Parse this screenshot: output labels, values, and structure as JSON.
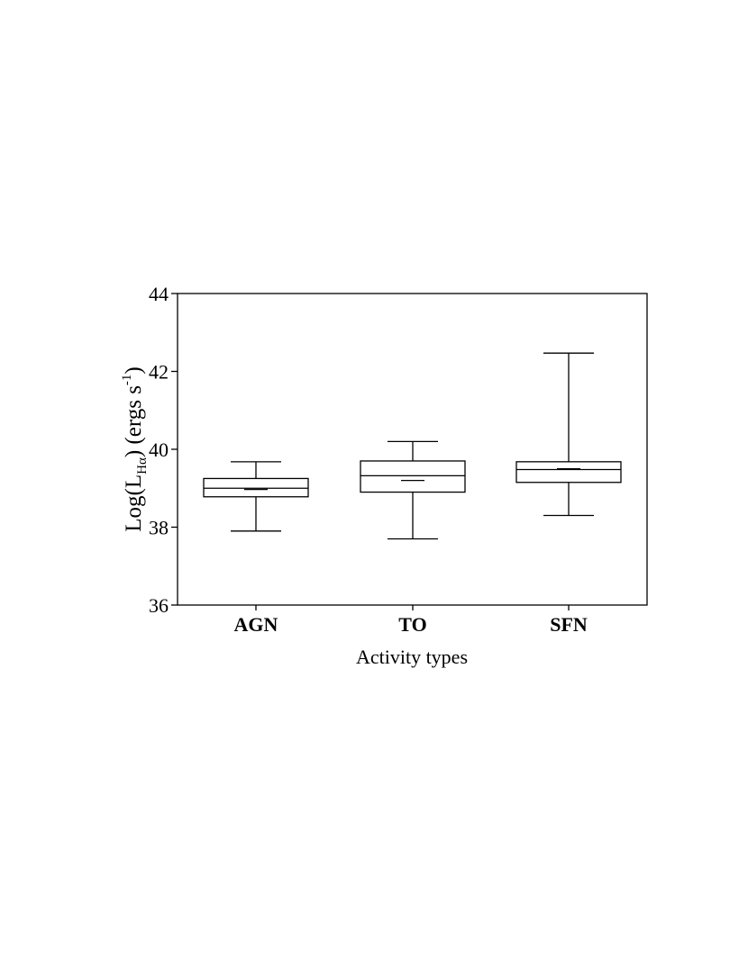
{
  "chart_data": {
    "type": "box",
    "xlabel": "Activity types",
    "ylabel": {
      "prefix": "Log(L",
      "subscript": "Hα",
      "middle": ") (ergs s",
      "superscript": "-1",
      "suffix": ")"
    },
    "ylim": [
      36,
      44
    ],
    "yticks": [
      "36",
      "38",
      "40",
      "42",
      "44"
    ],
    "categories": [
      "AGN",
      "TO",
      "SFN"
    ],
    "boxes": [
      {
        "category": "AGN",
        "whisker_low": 37.9,
        "q1": 38.78,
        "median": 39.0,
        "q3": 39.25,
        "whisker_high": 39.68,
        "mean": 38.97
      },
      {
        "category": "TO",
        "whisker_low": 37.7,
        "q1": 38.9,
        "median": 39.32,
        "q3": 39.7,
        "whisker_high": 40.2,
        "mean": 39.2
      },
      {
        "category": "SFN",
        "whisker_low": 38.3,
        "q1": 39.15,
        "median": 39.48,
        "q3": 39.68,
        "whisker_high": 42.47,
        "mean": 39.5
      }
    ],
    "grid": false,
    "legend": "none"
  }
}
